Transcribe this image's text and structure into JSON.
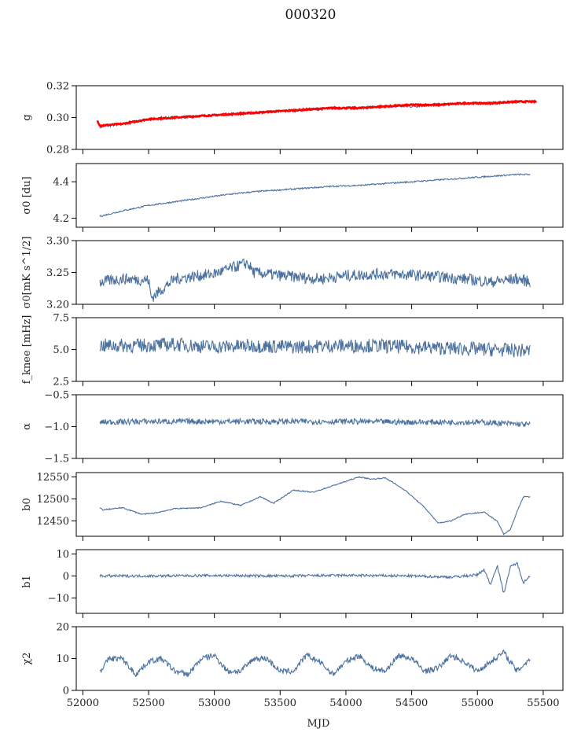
{
  "figure": {
    "title": "000320",
    "xlabel": "MJD"
  },
  "colors": {
    "series": "#4c72a0",
    "fit": "#ff0000",
    "axes": "#000000",
    "background": "#ffffff"
  },
  "chart_data": [
    {
      "type": "line",
      "ylabel": "g",
      "xlim": [
        51950,
        55650
      ],
      "ylim": [
        0.28,
        0.32
      ],
      "yticks": [
        0.28,
        0.3,
        0.32
      ],
      "ytick_labels": [
        "0.28",
        "0.30",
        "0.32"
      ],
      "xticks": [
        52000,
        52500,
        53000,
        53500,
        54000,
        54500,
        55000,
        55500
      ],
      "x_start": 52130,
      "x_end": 55400,
      "series": [
        {
          "color": "#4c72a0",
          "x": [
            52130,
            52300,
            52500,
            52700,
            52900,
            53100,
            53300,
            53500,
            53700,
            53900,
            54100,
            54300,
            54500,
            54700,
            54900,
            55100,
            55300,
            55400
          ],
          "y": [
            0.294,
            0.296,
            0.299,
            0.3,
            0.301,
            0.302,
            0.303,
            0.304,
            0.305,
            0.306,
            0.306,
            0.307,
            0.307,
            0.308,
            0.309,
            0.309,
            0.31,
            0.31
          ],
          "noise": 0.0008
        },
        {
          "name": "fit",
          "color": "#ff0000",
          "x": [
            52110,
            52130,
            52300,
            52500,
            52700,
            52900,
            53100,
            53300,
            53500,
            53700,
            53900,
            54100,
            54300,
            54500,
            54700,
            54900,
            55100,
            55300,
            55450
          ],
          "y": [
            0.298,
            0.295,
            0.296,
            0.299,
            0.3,
            0.301,
            0.302,
            0.303,
            0.304,
            0.305,
            0.306,
            0.306,
            0.307,
            0.308,
            0.308,
            0.309,
            0.309,
            0.31,
            0.31
          ],
          "noise": 0.0004
        }
      ]
    },
    {
      "type": "line",
      "ylabel": "σ0 [du]",
      "xlim": [
        51950,
        55650
      ],
      "ylim": [
        4.15,
        4.5
      ],
      "yticks": [
        4.2,
        4.4
      ],
      "ytick_labels": [
        "4.2",
        "4.4"
      ],
      "xticks": [
        52000,
        52500,
        53000,
        53500,
        54000,
        54500,
        55000,
        55500
      ],
      "x_start": 52130,
      "x_end": 55400,
      "series": [
        {
          "color": "#4c72a0",
          "x": [
            52130,
            52300,
            52500,
            52700,
            52900,
            53100,
            53300,
            53500,
            53700,
            53900,
            54100,
            54300,
            54500,
            54700,
            54900,
            55100,
            55300,
            55400
          ],
          "y": [
            4.21,
            4.24,
            4.27,
            4.29,
            4.31,
            4.33,
            4.345,
            4.355,
            4.365,
            4.375,
            4.38,
            4.39,
            4.4,
            4.41,
            4.42,
            4.43,
            4.44,
            4.44
          ],
          "noise": 0.004
        }
      ]
    },
    {
      "type": "line",
      "ylabel": "σ0[mK s^1/2]",
      "xlim": [
        51950,
        55650
      ],
      "ylim": [
        3.2,
        3.3
      ],
      "yticks": [
        3.2,
        3.25,
        3.3
      ],
      "ytick_labels": [
        "3.20",
        "3.25",
        "3.30"
      ],
      "xticks": [
        52000,
        52500,
        53000,
        53500,
        54000,
        54500,
        55000,
        55500
      ],
      "x_start": 52130,
      "x_end": 55400,
      "series": [
        {
          "color": "#4c72a0",
          "x": [
            52130,
            52300,
            52500,
            52520,
            52700,
            53000,
            53250,
            53300,
            53500,
            53800,
            54000,
            54300,
            54600,
            54900,
            55100,
            55300,
            55400
          ],
          "y": [
            3.235,
            3.24,
            3.238,
            3.21,
            3.24,
            3.248,
            3.265,
            3.25,
            3.245,
            3.24,
            3.245,
            3.248,
            3.245,
            3.24,
            3.235,
            3.24,
            3.235
          ],
          "noise": 0.009
        }
      ]
    },
    {
      "type": "line",
      "ylabel": "f_knee [mHz]",
      "xlim": [
        51950,
        55650
      ],
      "ylim": [
        2.5,
        7.5
      ],
      "yticks": [
        2.5,
        5.0,
        7.5
      ],
      "ytick_labels": [
        "2.5",
        "5.0",
        "7.5"
      ],
      "xticks": [
        52000,
        52500,
        53000,
        53500,
        54000,
        54500,
        55000,
        55500
      ],
      "x_start": 52130,
      "x_end": 55400,
      "series": [
        {
          "color": "#4c72a0",
          "x": [
            52130,
            52400,
            52700,
            53000,
            53300,
            53600,
            53900,
            54200,
            54500,
            54800,
            55100,
            55400
          ],
          "y": [
            5.3,
            5.3,
            5.4,
            5.2,
            5.3,
            5.2,
            5.3,
            5.3,
            5.2,
            5.1,
            5.0,
            4.9
          ],
          "noise": 0.55
        }
      ]
    },
    {
      "type": "line",
      "ylabel": "α",
      "xlim": [
        51950,
        55650
      ],
      "ylim": [
        -1.5,
        -0.5
      ],
      "yticks": [
        -1.5,
        -1.0,
        -0.5
      ],
      "ytick_labels": [
        "−1.5",
        "−1.0",
        "−0.5"
      ],
      "xticks": [
        52000,
        52500,
        53000,
        53500,
        54000,
        54500,
        55000,
        55500
      ],
      "x_start": 52130,
      "x_end": 55400,
      "series": [
        {
          "color": "#4c72a0",
          "x": [
            52130,
            52500,
            53000,
            53500,
            54000,
            54500,
            55000,
            55400
          ],
          "y": [
            -0.93,
            -0.92,
            -0.92,
            -0.92,
            -0.92,
            -0.93,
            -0.93,
            -0.97
          ],
          "noise": 0.045
        }
      ]
    },
    {
      "type": "line",
      "ylabel": "b0",
      "xlim": [
        51950,
        55650
      ],
      "ylim": [
        12415,
        12560
      ],
      "yticks": [
        12450,
        12500,
        12550
      ],
      "ytick_labels": [
        "12450",
        "12500",
        "12550"
      ],
      "xticks": [
        52000,
        52500,
        53000,
        53500,
        54000,
        54500,
        55000,
        55500
      ],
      "x_start": 52130,
      "x_end": 55400,
      "series": [
        {
          "color": "#4c72a0",
          "x": [
            52130,
            52150,
            52300,
            52450,
            52550,
            52700,
            52900,
            53050,
            53200,
            53350,
            53450,
            53600,
            53750,
            53850,
            54000,
            54100,
            54200,
            54300,
            54450,
            54600,
            54700,
            54800,
            54900,
            55050,
            55150,
            55200,
            55250,
            55300,
            55350,
            55400
          ],
          "y": [
            12480,
            12475,
            12480,
            12465,
            12468,
            12478,
            12480,
            12495,
            12485,
            12505,
            12490,
            12520,
            12515,
            12525,
            12540,
            12550,
            12545,
            12548,
            12520,
            12480,
            12445,
            12450,
            12465,
            12470,
            12450,
            12420,
            12430,
            12470,
            12505,
            12505
          ],
          "noise": 1.2
        }
      ]
    },
    {
      "type": "line",
      "ylabel": "b1",
      "xlim": [
        51950,
        55650
      ],
      "ylim": [
        -17,
        12
      ],
      "yticks": [
        -10,
        0,
        10
      ],
      "ytick_labels": [
        "−10",
        "0",
        "10"
      ],
      "xticks": [
        52000,
        52500,
        53000,
        53500,
        54000,
        54500,
        55000,
        55500
      ],
      "x_start": 52130,
      "x_end": 55400,
      "series": [
        {
          "color": "#4c72a0",
          "x": [
            52130,
            52500,
            53000,
            53500,
            54000,
            54500,
            54800,
            55000,
            55050,
            55100,
            55150,
            55200,
            55250,
            55300,
            55350,
            55400
          ],
          "y": [
            0,
            0,
            0.2,
            0,
            0.3,
            0,
            -0.5,
            0.5,
            3,
            -4,
            5,
            -8,
            4,
            6,
            -3,
            0
          ],
          "noise": 0.6
        }
      ]
    },
    {
      "type": "line",
      "ylabel": "χ2",
      "xlabel": "MJD",
      "xlim": [
        51950,
        55650
      ],
      "ylim": [
        0,
        20
      ],
      "yticks": [
        0,
        10,
        20
      ],
      "ytick_labels": [
        "0",
        "10",
        "20"
      ],
      "xticks": [
        52000,
        52500,
        53000,
        53500,
        54000,
        54500,
        55000,
        55500
      ],
      "xtick_labels": [
        "52000",
        "52500",
        "53000",
        "53500",
        "54000",
        "54500",
        "55000",
        "55500"
      ],
      "x_start": 52130,
      "x_end": 55400,
      "series": [
        {
          "color": "#4c72a0",
          "x": [
            52130,
            52200,
            52300,
            52400,
            52500,
            52600,
            52700,
            52800,
            52900,
            53000,
            53100,
            53200,
            53300,
            53400,
            53500,
            53600,
            53700,
            53800,
            53900,
            54000,
            54100,
            54200,
            54300,
            54400,
            54500,
            54600,
            54700,
            54800,
            54900,
            55000,
            55100,
            55200,
            55300,
            55400
          ],
          "y": [
            6,
            10,
            10,
            5,
            9,
            10,
            6,
            5,
            10,
            11,
            6,
            6,
            10,
            10,
            6,
            6,
            11,
            9,
            5,
            9,
            11,
            7,
            6,
            11,
            10,
            6,
            7,
            11,
            9,
            6,
            9,
            12,
            6,
            10
          ],
          "noise": 0.9
        }
      ]
    }
  ]
}
